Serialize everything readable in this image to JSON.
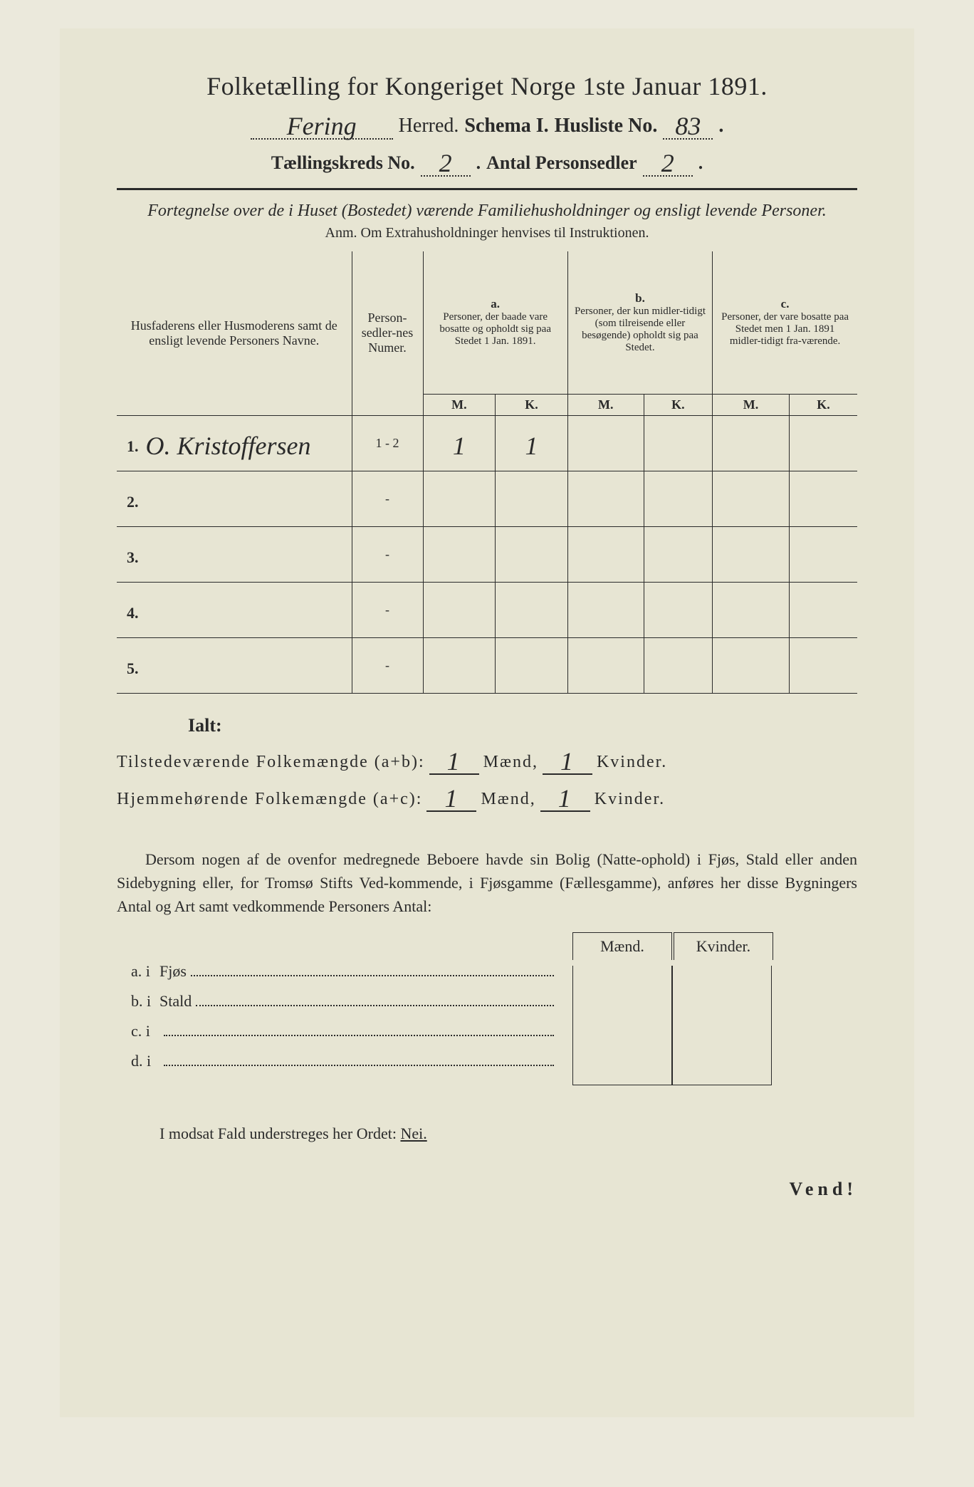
{
  "title": "Folketælling for Kongeriget Norge 1ste Januar 1891.",
  "header": {
    "herred_value": "Fering",
    "herred_label": "Herred.",
    "schema_label": "Schema I.",
    "husliste_label": "Husliste No.",
    "husliste_value": "83",
    "kreds_label": "Tællingskreds No.",
    "kreds_value": "2",
    "antal_label": "Antal Personsedler",
    "antal_value": "2"
  },
  "fortegnelse": "Fortegnelse over de i Huset (Bostedet) værende Familiehusholdninger og ensligt levende Personer.",
  "anm": "Anm. Om Extrahusholdninger henvises til Instruktionen.",
  "table": {
    "col_names": "Husfaderens eller Husmoderens samt de ensligt levende Personers Navne.",
    "col_numer": "Person-sedler-nes Numer.",
    "col_a_label": "a.",
    "col_a": "Personer, der baade vare bosatte og opholdt sig paa Stedet 1 Jan. 1891.",
    "col_b_label": "b.",
    "col_b": "Personer, der kun midler-tidigt (som tilreisende eller besøgende) opholdt sig paa Stedet.",
    "col_c_label": "c.",
    "col_c": "Personer, der vare bosatte paa Stedet men 1 Jan. 1891 midler-tidigt fra-værende.",
    "m": "M.",
    "k": "K.",
    "rows": [
      {
        "n": "1.",
        "name": "O. Kristoffersen",
        "numer": "1 - 2",
        "a_m": "1",
        "a_k": "1",
        "b_m": "",
        "b_k": "",
        "c_m": "",
        "c_k": ""
      },
      {
        "n": "2.",
        "name": "",
        "numer": "-",
        "a_m": "",
        "a_k": "",
        "b_m": "",
        "b_k": "",
        "c_m": "",
        "c_k": ""
      },
      {
        "n": "3.",
        "name": "",
        "numer": "-",
        "a_m": "",
        "a_k": "",
        "b_m": "",
        "b_k": "",
        "c_m": "",
        "c_k": ""
      },
      {
        "n": "4.",
        "name": "",
        "numer": "-",
        "a_m": "",
        "a_k": "",
        "b_m": "",
        "b_k": "",
        "c_m": "",
        "c_k": ""
      },
      {
        "n": "5.",
        "name": "",
        "numer": "-",
        "a_m": "",
        "a_k": "",
        "b_m": "",
        "b_k": "",
        "c_m": "",
        "c_k": ""
      }
    ]
  },
  "ialt": {
    "label": "Ialt:",
    "row1_a": "Tilstedeværende Folkemængde (a+b):",
    "row2_a": "Hjemmehørende Folkemængde (a+c):",
    "maend": "Mænd,",
    "kvinder": "Kvinder.",
    "v1_m": "1",
    "v1_k": "1",
    "v2_m": "1",
    "v2_k": "1"
  },
  "para": "Dersom nogen af de ovenfor medregnede Beboere havde sin Bolig (Natte-ophold) i Fjøs, Stald eller anden Sidebygning eller, for Tromsø Stifts Ved-kommende, i Fjøsgamme (Fællesgamme), anføres her disse Bygningers Antal og Art samt vedkommende Personers Antal:",
  "side": {
    "maend": "Mænd.",
    "kvinder": "Kvinder.",
    "rows": [
      {
        "label": "a. i",
        "type": "Fjøs"
      },
      {
        "label": "b. i",
        "type": "Stald"
      },
      {
        "label": "c. i",
        "type": ""
      },
      {
        "label": "d. i",
        "type": ""
      }
    ]
  },
  "modsat": "I modsat Fald understreges her Ordet:",
  "nei": "Nei.",
  "vend": "Vend!",
  "colors": {
    "bg": "#e7e5d3",
    "text": "#2a2a2a"
  }
}
